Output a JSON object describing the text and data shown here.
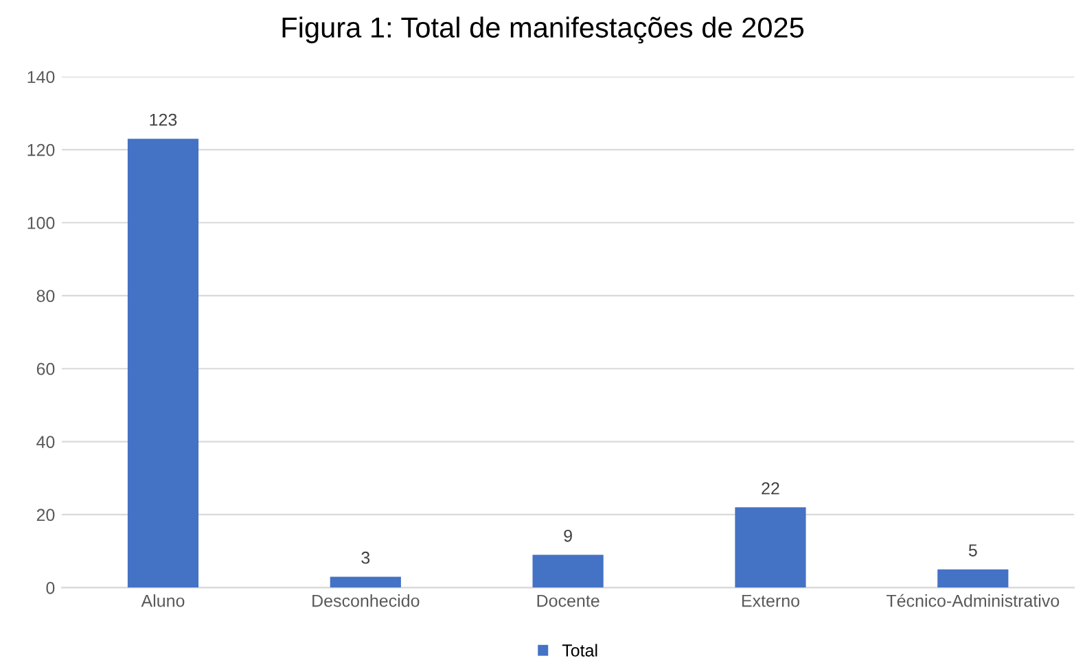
{
  "chart_data": {
    "type": "bar",
    "title": "Figura 1: Total de manifestações de 2025",
    "categories": [
      "Aluno",
      "Desconhecido",
      "Docente",
      "Externo",
      "Técnico-Administrativo"
    ],
    "series": [
      {
        "name": "Total",
        "color": "#4472c4",
        "values": [
          123,
          3,
          9,
          22,
          5
        ]
      }
    ],
    "ylim": [
      0,
      140
    ],
    "yticks": [
      0,
      20,
      40,
      60,
      80,
      100,
      120,
      140
    ],
    "grid": "y",
    "legend": "bottom",
    "data_labels": true
  }
}
